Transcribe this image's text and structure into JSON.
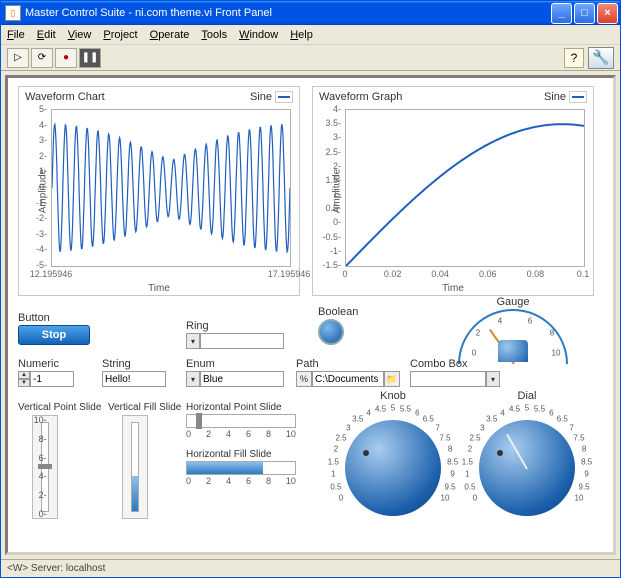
{
  "window": {
    "title": "Master Control Suite - ni.com theme.vi Front Panel",
    "app_icon_glyph": "▯"
  },
  "menu": [
    "File",
    "Edit",
    "View",
    "Project",
    "Operate",
    "Tools",
    "Window",
    "Help"
  ],
  "toolbar": {
    "run": "▷",
    "run_cont": "⟳",
    "abort": "●",
    "pause": "❚❚",
    "help": "?",
    "panel": "◧"
  },
  "chart_left": {
    "title": "Waveform Chart",
    "legend": "Sine",
    "ylabel": "Amplitude",
    "xlabel": "Time",
    "ylim": [
      -5,
      5
    ],
    "ytick_step": 1,
    "xlim": [
      12.195946,
      17.195946
    ],
    "xticks": [
      "12.195946",
      "17.195946"
    ],
    "line_color": "#1e5fbf",
    "line_width": 1.2,
    "type": "line",
    "cycles": 22,
    "amp_min": 0.35,
    "amp_max": 0.82,
    "bg": "#ffffff",
    "border": "#b0b0b0",
    "font_size": 10
  },
  "chart_right": {
    "title": "Waveform Graph",
    "legend": "Sine",
    "ylabel": "Amplitude",
    "xlabel": "Time",
    "ylim": [
      -1.5,
      4
    ],
    "yticks": [
      -1.5,
      -1,
      -0.5,
      0,
      0.5,
      1,
      1.5,
      2,
      2.5,
      3,
      3.5,
      4
    ],
    "xlim": [
      0,
      0.1
    ],
    "xticks": [
      0,
      0.02,
      0.04,
      0.06,
      0.08,
      0.1
    ],
    "line_color": "#1e5fbf",
    "line_width": 2,
    "type": "line",
    "bg": "#ffffff",
    "border": "#b0b0b0",
    "font_size": 10
  },
  "controls": {
    "button": {
      "label": "Button",
      "text": "Stop"
    },
    "ring": {
      "label": "Ring",
      "value": ""
    },
    "boolean": {
      "label": "Boolean",
      "value": true,
      "on_color": "#1e5fbf"
    },
    "gauge": {
      "label": "Gauge",
      "min": 0,
      "max": 10,
      "value": 3,
      "ticks": [
        0,
        2,
        4,
        6,
        8,
        10
      ],
      "arc_color": "#2a7ac2",
      "needle_color": "#c87a30"
    },
    "numeric": {
      "label": "Numeric",
      "value": "-1"
    },
    "string": {
      "label": "String",
      "value": "Hello!"
    },
    "enum": {
      "label": "Enum",
      "value": "Blue"
    },
    "path": {
      "label": "Path",
      "value": "C:\\Documents"
    },
    "combo": {
      "label": "Combo Box",
      "value": ""
    },
    "vpoint": {
      "label": "Vertical Point Slide",
      "min": 0,
      "max": 10,
      "value": 5,
      "ticks": [
        0,
        2,
        4,
        6,
        8,
        10
      ]
    },
    "vfill": {
      "label": "Vertical Fill Slide",
      "min": 0,
      "max": 10,
      "value": 4,
      "ticks": [
        0,
        2,
        4,
        6,
        8,
        10
      ]
    },
    "hpoint": {
      "label": "Horizontal Point Slide",
      "min": 0,
      "max": 10,
      "value": 1,
      "ticks": [
        0,
        2,
        4,
        6,
        8,
        10
      ]
    },
    "hfill": {
      "label": "Horizontal Fill Slide",
      "min": 0,
      "max": 10,
      "value": 7,
      "ticks": [
        0,
        2,
        4,
        6,
        8,
        10
      ]
    },
    "knob": {
      "label": "Knob",
      "min": 0,
      "max": 10,
      "value": 2,
      "ticks": [
        0,
        0.5,
        1,
        1.5,
        2,
        2.5,
        3,
        3.5,
        4,
        4.5,
        5,
        5.5,
        6,
        6.5,
        7,
        7.5,
        8,
        8.5,
        9,
        9.5,
        10
      ],
      "color": "#1a5fab"
    },
    "dial": {
      "label": "Dial",
      "min": 0,
      "max": 10,
      "value": 3.5,
      "ticks": [
        0,
        0.5,
        1,
        1.5,
        2,
        2.5,
        3,
        3.5,
        4,
        4.5,
        5,
        5.5,
        6,
        6.5,
        7,
        7.5,
        8,
        8.5,
        9,
        9.5,
        10
      ],
      "color": "#1a5fab"
    }
  },
  "status": {
    "text": "<W> Server: localhost"
  },
  "colors": {
    "accent": "#1e5fbf",
    "window_bg": "#ece9d8",
    "panel_bg": "#ffffff"
  }
}
